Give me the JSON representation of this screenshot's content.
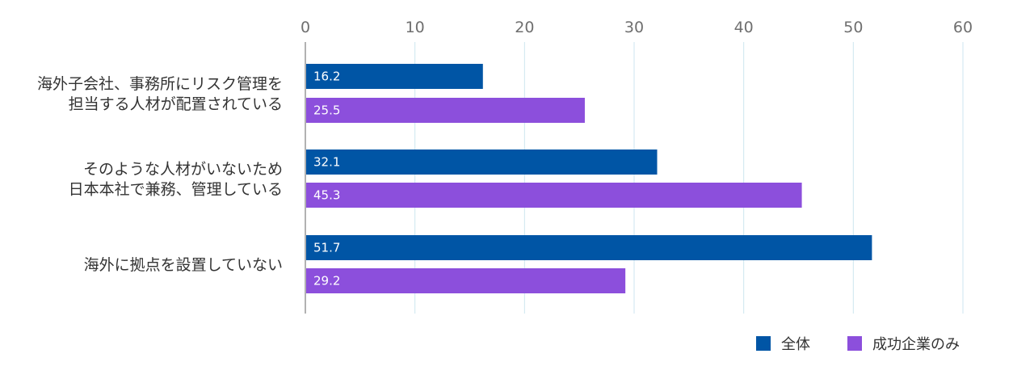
{
  "chart_data": {
    "type": "bar",
    "orientation": "horizontal",
    "categories": [
      [
        "海外子会社、事務所にリスク管理を",
        "担当する人材が配置されている"
      ],
      [
        "そのような人材がいないため",
        "日本本社で兼務、管理している"
      ],
      [
        "海外に拠点を設置していない"
      ]
    ],
    "series": [
      {
        "name": "全体",
        "color": "#0055a5",
        "values": [
          16.2,
          32.1,
          51.7
        ],
        "labels": [
          "16.2",
          "32.1",
          "51.7"
        ]
      },
      {
        "name": "成功企業のみ",
        "color": "#8c4fdc",
        "values": [
          25.5,
          45.3,
          29.2
        ],
        "labels": [
          "25.5",
          "45.3",
          "29.2"
        ]
      }
    ],
    "xlim": [
      0,
      60
    ],
    "ticks": [
      "0",
      "10",
      "20",
      "30",
      "40",
      "50",
      "60"
    ],
    "tick_values": [
      0,
      10,
      20,
      30,
      40,
      50,
      60
    ],
    "grid": true,
    "grid_color": "#cde6f0",
    "axis_color": "#999999",
    "legend_position": "bottom-right",
    "title": "",
    "xlabel": "",
    "ylabel": ""
  }
}
